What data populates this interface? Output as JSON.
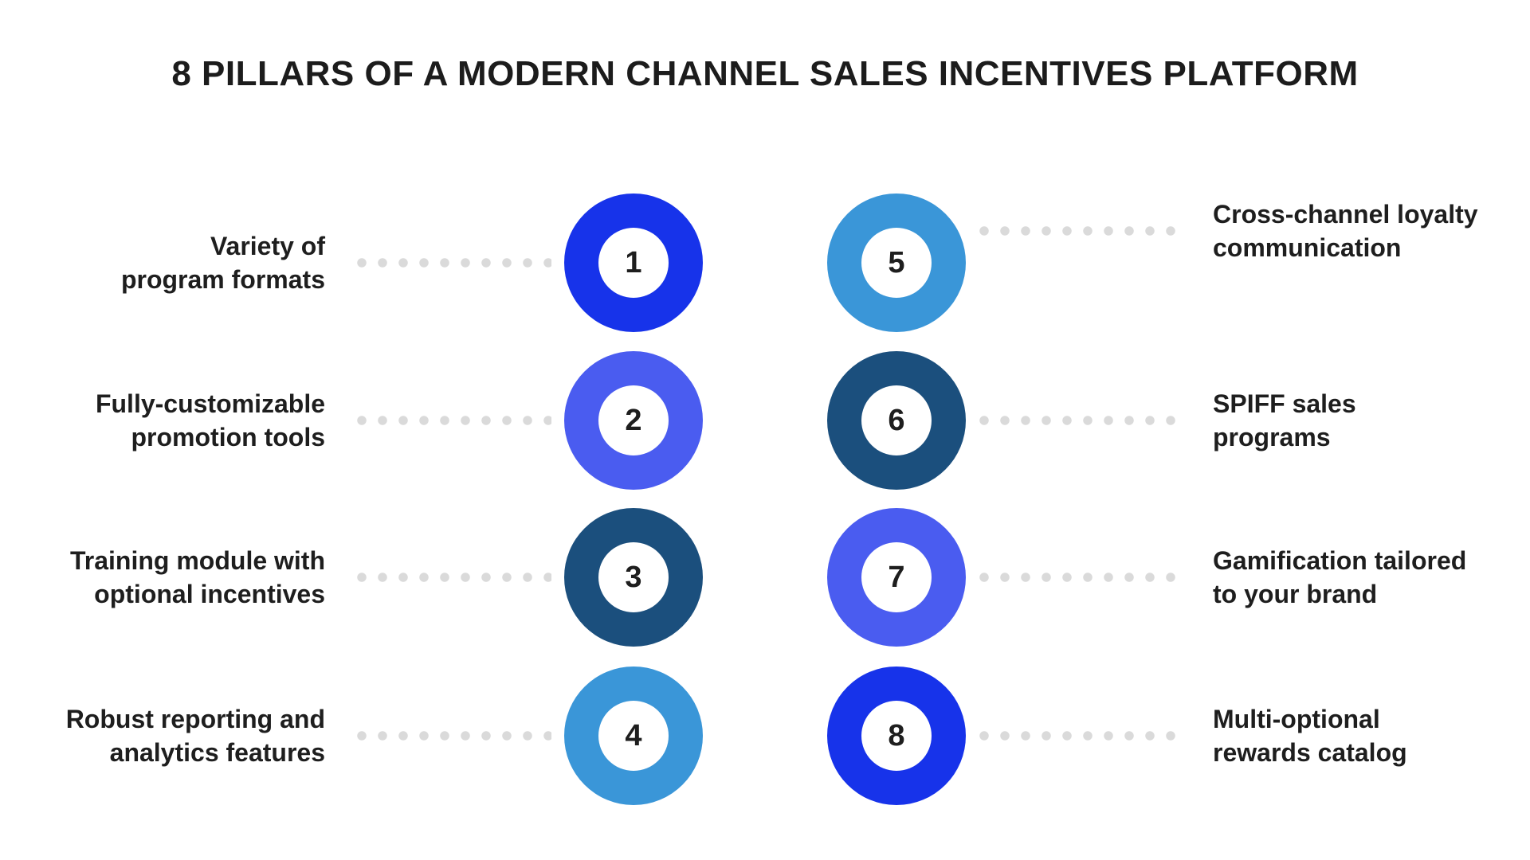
{
  "title": "8 PILLARS OF A MODERN CHANNEL SALES INCENTIVES PLATFORM",
  "colors": {
    "vivid_blue": "#1733EA",
    "periwinkle_blue": "#4A5CF0",
    "dark_navy": "#1B4F7D",
    "sky_blue": "#3A96D8",
    "dot_gray": "#DADADA",
    "text_dark": "#1E1E1E"
  },
  "pillars": [
    {
      "number": "1",
      "label_line1": "Variety of",
      "label_line2": "program formats",
      "side": "left",
      "color": "#1733EA"
    },
    {
      "number": "2",
      "label_line1": "Fully-customizable",
      "label_line2": "promotion tools",
      "side": "left",
      "color": "#4A5CF0"
    },
    {
      "number": "3",
      "label_line1": "Training module with",
      "label_line2": "optional incentives",
      "side": "left",
      "color": "#1B4F7D"
    },
    {
      "number": "4",
      "label_line1": "Robust reporting and",
      "label_line2": "analytics features",
      "side": "left",
      "color": "#3A96D8"
    },
    {
      "number": "5",
      "label_line1": "Cross-channel loyalty",
      "label_line2": "communication",
      "side": "right",
      "color": "#3A96D8"
    },
    {
      "number": "6",
      "label_line1": "SPIFF sales",
      "label_line2": "programs",
      "side": "right",
      "color": "#1B4F7D"
    },
    {
      "number": "7",
      "label_line1": "Gamification tailored",
      "label_line2": "to your brand",
      "side": "right",
      "color": "#4A5CF0"
    },
    {
      "number": "8",
      "label_line1": "Multi-optional",
      "label_line2": "rewards catalog",
      "side": "right",
      "color": "#1733EA"
    }
  ]
}
